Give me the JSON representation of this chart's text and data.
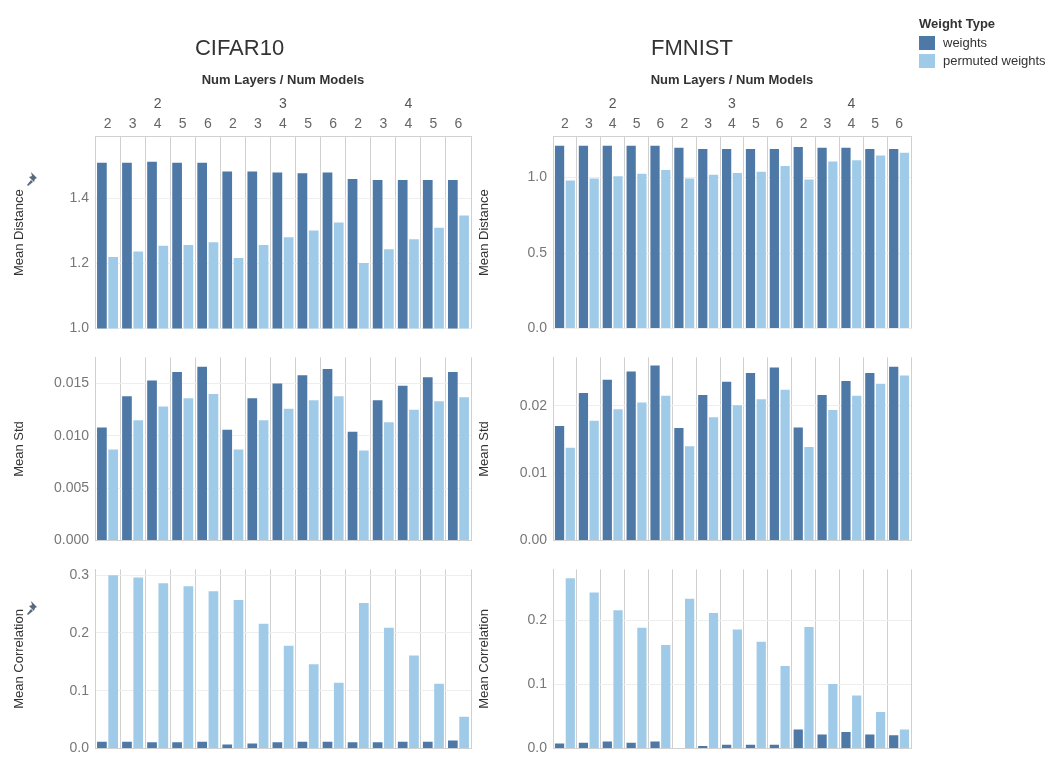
{
  "chart_data": [
    {
      "type": "bar",
      "title": "CIFAR10",
      "xlabel": "Num Layers / Num Models",
      "ylabel": "Mean Distance",
      "annotations": [
        "2",
        "3",
        "4"
      ],
      "categories": [
        "2",
        "3",
        "4",
        "5",
        "6",
        "2",
        "3",
        "4",
        "5",
        "6",
        "2",
        "3",
        "4",
        "5",
        "6"
      ],
      "ylim": [
        1.0,
        1.59
      ],
      "yticks": [
        {
          "value": 1.0,
          "label": "1.0"
        },
        {
          "value": 1.2,
          "label": "1.2"
        },
        {
          "value": 1.4,
          "label": "1.4"
        }
      ],
      "grid": true,
      "series": [
        {
          "color": "#4e79a7",
          "values": [
            1.51,
            1.51,
            1.513,
            1.51,
            1.51,
            1.483,
            1.483,
            1.48,
            1.478,
            1.48,
            1.46,
            1.457,
            1.457,
            1.457,
            1.457
          ]
        },
        {
          "color": "#a0cbe8",
          "values": [
            1.22,
            1.237,
            1.255,
            1.257,
            1.266,
            1.217,
            1.257,
            1.281,
            1.302,
            1.326,
            1.202,
            1.244,
            1.275,
            1.31,
            1.348
          ]
        }
      ]
    },
    {
      "type": "bar",
      "title": "FMNIST",
      "xlabel": "Num Layers / Num Models",
      "ylabel": "Mean Distance",
      "annotations": [
        "2",
        "3",
        "4"
      ],
      "categories": [
        "2",
        "3",
        "4",
        "5",
        "6",
        "2",
        "3",
        "4",
        "5",
        "6",
        "2",
        "3",
        "4",
        "5",
        "6"
      ],
      "ylim": [
        0,
        1.27
      ],
      "yticks": [
        {
          "value": 0,
          "label": "0.0"
        },
        {
          "value": 0.5,
          "label": "0.5"
        },
        {
          "value": 1.0,
          "label": "1.0"
        }
      ],
      "grid": true,
      "legend": "top right",
      "legend_title": "Weight Type",
      "series": [
        {
          "name": "weights",
          "color": "#4e79a7",
          "values": [
            1.21,
            1.21,
            1.21,
            1.21,
            1.21,
            1.198,
            1.19,
            1.19,
            1.19,
            1.19,
            1.203,
            1.198,
            1.198,
            1.19,
            1.19
          ]
        },
        {
          "name": "permuted weights",
          "color": "#a0cbe8",
          "values": [
            0.981,
            0.994,
            1.008,
            1.025,
            1.05,
            0.994,
            1.019,
            1.031,
            1.039,
            1.076,
            0.988,
            1.107,
            1.114,
            1.147,
            1.165
          ]
        }
      ]
    },
    {
      "type": "bar",
      "ylabel": "Mean Std",
      "categories": [
        "2",
        "3",
        "4",
        "5",
        "6",
        "2",
        "3",
        "4",
        "5",
        "6",
        "2",
        "3",
        "4",
        "5",
        "6"
      ],
      "tick_labels": "y",
      "ylim": [
        0,
        0.0175
      ],
      "yticks": [
        {
          "value": 0,
          "label": "0.000"
        },
        {
          "value": 0.005,
          "label": "0.005"
        },
        {
          "value": 0.01,
          "label": "0.010"
        },
        {
          "value": 0.015,
          "label": "0.015"
        }
      ],
      "grid": true,
      "series": [
        {
          "color": "#4e79a7",
          "values": [
            0.0108,
            0.0138,
            0.0153,
            0.0161,
            0.0166,
            0.0106,
            0.0136,
            0.015,
            0.0158,
            0.0164,
            0.0104,
            0.0134,
            0.0148,
            0.0156,
            0.0161
          ]
        },
        {
          "color": "#a0cbe8",
          "values": [
            0.0087,
            0.0115,
            0.0128,
            0.0136,
            0.014,
            0.0087,
            0.0115,
            0.0126,
            0.0134,
            0.0138,
            0.0086,
            0.0113,
            0.0125,
            0.0133,
            0.0137
          ]
        }
      ]
    },
    {
      "type": "bar",
      "ylabel": "Mean Std",
      "categories": [
        "2",
        "3",
        "4",
        "5",
        "6",
        "2",
        "3",
        "4",
        "5",
        "6",
        "2",
        "3",
        "4",
        "5",
        "6"
      ],
      "tick_labels": "y",
      "ylim": [
        0,
        0.0272
      ],
      "yticks": [
        {
          "value": 0,
          "label": "0.00"
        },
        {
          "value": 0.01,
          "label": "0.01"
        },
        {
          "value": 0.02,
          "label": "0.02"
        }
      ],
      "grid": true,
      "series": [
        {
          "color": "#4e79a7",
          "values": [
            0.017,
            0.0219,
            0.0239,
            0.0251,
            0.026,
            0.0167,
            0.0216,
            0.0236,
            0.0249,
            0.0257,
            0.0168,
            0.0216,
            0.0237,
            0.0249,
            0.0258
          ]
        },
        {
          "color": "#a0cbe8",
          "values": [
            0.0138,
            0.0178,
            0.0195,
            0.0205,
            0.0215,
            0.014,
            0.0183,
            0.0201,
            0.021,
            0.0224,
            0.0139,
            0.0194,
            0.0215,
            0.0233,
            0.0245
          ]
        }
      ]
    },
    {
      "type": "bar",
      "ylabel": "Mean Correlation",
      "categories": [
        "2",
        "3",
        "4",
        "5",
        "6",
        "2",
        "3",
        "4",
        "5",
        "6",
        "2",
        "3",
        "4",
        "5",
        "6"
      ],
      "tick_labels": "y",
      "ylim": [
        0,
        0.31
      ],
      "yticks": [
        {
          "value": 0,
          "label": "0.0"
        },
        0.1,
        0.2,
        0.3
      ],
      "grid": true,
      "series": [
        {
          "color": "#4e79a7",
          "values": [
            0.012,
            0.012,
            0.011,
            0.011,
            0.012,
            0.007,
            0.009,
            0.011,
            0.012,
            0.012,
            0.011,
            0.011,
            0.012,
            0.012,
            0.014
          ]
        },
        {
          "color": "#a0cbe8",
          "values": [
            0.3,
            0.296,
            0.286,
            0.281,
            0.272,
            0.257,
            0.216,
            0.178,
            0.146,
            0.114,
            0.252,
            0.209,
            0.161,
            0.112,
            0.055
          ]
        }
      ]
    },
    {
      "type": "bar",
      "ylabel": "Mean Correlation",
      "categories": [
        "2",
        "3",
        "4",
        "5",
        "6",
        "2",
        "3",
        "4",
        "5",
        "6",
        "2",
        "3",
        "4",
        "5",
        "6"
      ],
      "tick_labels": "y",
      "ylim": [
        0,
        0.28
      ],
      "yticks": [
        {
          "value": 0,
          "label": "0.0"
        },
        0.1,
        0.2
      ],
      "grid": true,
      "series": [
        {
          "color": "#4e79a7",
          "values": [
            0.008,
            0.009,
            0.011,
            0.009,
            0.011,
            0,
            0.004,
            0.006,
            0.006,
            0.006,
            0.03,
            0.022,
            0.026,
            0.022,
            0.021
          ]
        },
        {
          "color": "#a0cbe8",
          "values": [
            0.266,
            0.244,
            0.216,
            0.189,
            0.162,
            0.234,
            0.212,
            0.186,
            0.167,
            0.129,
            0.19,
            0.101,
            0.083,
            0.057,
            0.03
          ]
        }
      ]
    }
  ]
}
